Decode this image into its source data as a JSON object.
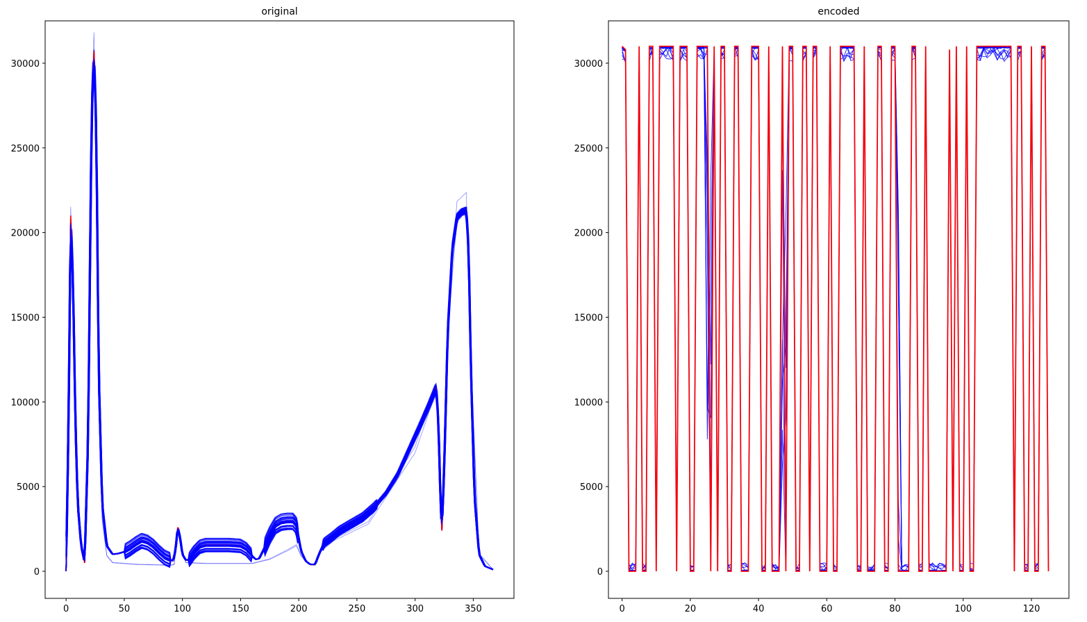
{
  "chart_data": [
    {
      "type": "line",
      "title": "original",
      "xlabel": "",
      "ylabel": "",
      "xlim": [
        -18,
        385
      ],
      "ylim": [
        -1600,
        32500
      ],
      "x_ticks": [
        0,
        50,
        100,
        150,
        200,
        250,
        300,
        350
      ],
      "y_ticks": [
        0,
        5000,
        10000,
        15000,
        20000,
        25000,
        30000
      ],
      "x_tick_labels": [
        "0",
        "50",
        "100",
        "150",
        "200",
        "250",
        "300",
        "350"
      ],
      "y_tick_labels": [
        "0",
        "5000",
        "10000",
        "15000",
        "20000",
        "25000",
        "30000"
      ],
      "grid": false,
      "series_colors": {
        "samples": "#0000ff",
        "reference": "#ff0000"
      },
      "profile": [
        [
          0,
          0
        ],
        [
          2,
          8000
        ],
        [
          4,
          21000
        ],
        [
          6,
          17000
        ],
        [
          8,
          9000
        ],
        [
          10,
          4000
        ],
        [
          13,
          1500
        ],
        [
          16,
          500
        ],
        [
          19,
          8000
        ],
        [
          22,
          27000
        ],
        [
          24,
          30700
        ],
        [
          26,
          26000
        ],
        [
          28,
          12000
        ],
        [
          31,
          4000
        ],
        [
          35,
          1500
        ],
        [
          40,
          1000
        ],
        [
          45,
          1050
        ],
        [
          50,
          1150
        ],
        [
          55,
          1350
        ],
        [
          60,
          1600
        ],
        [
          65,
          1800
        ],
        [
          70,
          1700
        ],
        [
          75,
          1450
        ],
        [
          80,
          1100
        ],
        [
          85,
          800
        ],
        [
          90,
          650
        ],
        [
          92,
          620
        ],
        [
          94,
          1200
        ],
        [
          96,
          2600
        ],
        [
          98,
          2000
        ],
        [
          100,
          1000
        ],
        [
          103,
          650
        ],
        [
          106,
          700
        ],
        [
          110,
          1100
        ],
        [
          115,
          1450
        ],
        [
          120,
          1550
        ],
        [
          130,
          1550
        ],
        [
          140,
          1550
        ],
        [
          150,
          1500
        ],
        [
          155,
          1300
        ],
        [
          160,
          900
        ],
        [
          163,
          700
        ],
        [
          166,
          750
        ],
        [
          170,
          1300
        ],
        [
          175,
          2100
        ],
        [
          180,
          2700
        ],
        [
          185,
          2900
        ],
        [
          190,
          2950
        ],
        [
          195,
          2950
        ],
        [
          198,
          2700
        ],
        [
          202,
          1200
        ],
        [
          206,
          600
        ],
        [
          210,
          400
        ],
        [
          214,
          400
        ],
        [
          218,
          1100
        ],
        [
          222,
          1700
        ],
        [
          228,
          2000
        ],
        [
          235,
          2400
        ],
        [
          245,
          2800
        ],
        [
          255,
          3200
        ],
        [
          265,
          3800
        ],
        [
          275,
          4600
        ],
        [
          285,
          5700
        ],
        [
          295,
          7200
        ],
        [
          305,
          8700
        ],
        [
          312,
          9800
        ],
        [
          318,
          10800
        ],
        [
          320,
          9000
        ],
        [
          322,
          3800
        ],
        [
          323,
          2400
        ],
        [
          325,
          6000
        ],
        [
          328,
          14000
        ],
        [
          332,
          19000
        ],
        [
          336,
          20900
        ],
        [
          340,
          21200
        ],
        [
          344,
          21300
        ],
        [
          346,
          19000
        ],
        [
          348,
          12000
        ],
        [
          351,
          4500
        ],
        [
          355,
          1000
        ],
        [
          360,
          300
        ],
        [
          367,
          100
        ]
      ],
      "outlier_profile": [
        [
          0,
          0
        ],
        [
          2,
          8000
        ],
        [
          4,
          20500
        ],
        [
          6,
          16000
        ],
        [
          8,
          8000
        ],
        [
          10,
          3500
        ],
        [
          13,
          1300
        ],
        [
          16,
          500
        ],
        [
          19,
          8000
        ],
        [
          22,
          26500
        ],
        [
          24,
          30300
        ],
        [
          26,
          25000
        ],
        [
          28,
          10000
        ],
        [
          31,
          3000
        ],
        [
          35,
          900
        ],
        [
          40,
          500
        ],
        [
          60,
          400
        ],
        [
          90,
          350
        ],
        [
          93,
          400
        ],
        [
          96,
          2400
        ],
        [
          99,
          1200
        ],
        [
          103,
          500
        ],
        [
          120,
          450
        ],
        [
          160,
          450
        ],
        [
          175,
          700
        ],
        [
          190,
          1200
        ],
        [
          198,
          1500
        ],
        [
          202,
          900
        ],
        [
          208,
          450
        ],
        [
          214,
          400
        ],
        [
          218,
          1100
        ],
        [
          230,
          1800
        ],
        [
          260,
          2800
        ],
        [
          300,
          7000
        ],
        [
          318,
          10600
        ],
        [
          322,
          3500
        ],
        [
          323,
          2400
        ],
        [
          328,
          14000
        ],
        [
          336,
          20800
        ],
        [
          344,
          21300
        ],
        [
          348,
          12000
        ],
        [
          355,
          1000
        ],
        [
          367,
          100
        ]
      ]
    },
    {
      "type": "line",
      "title": "encoded",
      "xlabel": "",
      "ylabel": "",
      "xlim": [
        -4,
        131
      ],
      "ylim": [
        -1600,
        32500
      ],
      "x_ticks": [
        0,
        20,
        40,
        60,
        80,
        100,
        120
      ],
      "y_ticks": [
        0,
        5000,
        10000,
        15000,
        20000,
        25000,
        30000
      ],
      "x_tick_labels": [
        "0",
        "20",
        "40",
        "60",
        "80",
        "100",
        "120"
      ],
      "y_tick_labels": [
        "0",
        "5000",
        "10000",
        "15000",
        "20000",
        "25000",
        "30000"
      ],
      "grid": false,
      "series_colors": {
        "samples": "#0000ff",
        "reference": "#ff0000"
      },
      "values": [
        31000,
        30800,
        0,
        0,
        0,
        31000,
        0,
        0,
        31000,
        31000,
        0,
        31000,
        31000,
        31000,
        31000,
        31000,
        0,
        31000,
        31000,
        31000,
        0,
        0,
        31000,
        31000,
        31000,
        31000,
        0,
        31000,
        0,
        31000,
        31000,
        0,
        0,
        31000,
        31000,
        0,
        0,
        0,
        31000,
        31000,
        31000,
        0,
        0,
        31000,
        0,
        0,
        0,
        31000,
        0,
        31000,
        31000,
        0,
        0,
        31000,
        31000,
        0,
        31000,
        31000,
        0,
        0,
        0,
        31000,
        0,
        0,
        31000,
        31000,
        31000,
        31000,
        31000,
        0,
        0,
        31000,
        0,
        0,
        0,
        31000,
        31000,
        0,
        0,
        31000,
        31000,
        0,
        0,
        0,
        0,
        31000,
        31000,
        0,
        0,
        31000,
        0,
        0,
        0,
        0,
        0,
        0,
        30800,
        0,
        31000,
        0,
        0,
        31000,
        0,
        0,
        31000,
        31000,
        31000,
        31000,
        31000,
        31000,
        31000,
        31000,
        31000,
        31000,
        31000,
        0,
        31000,
        31000,
        0,
        0,
        31000,
        0,
        0,
        31000,
        31000,
        0
      ]
    }
  ]
}
